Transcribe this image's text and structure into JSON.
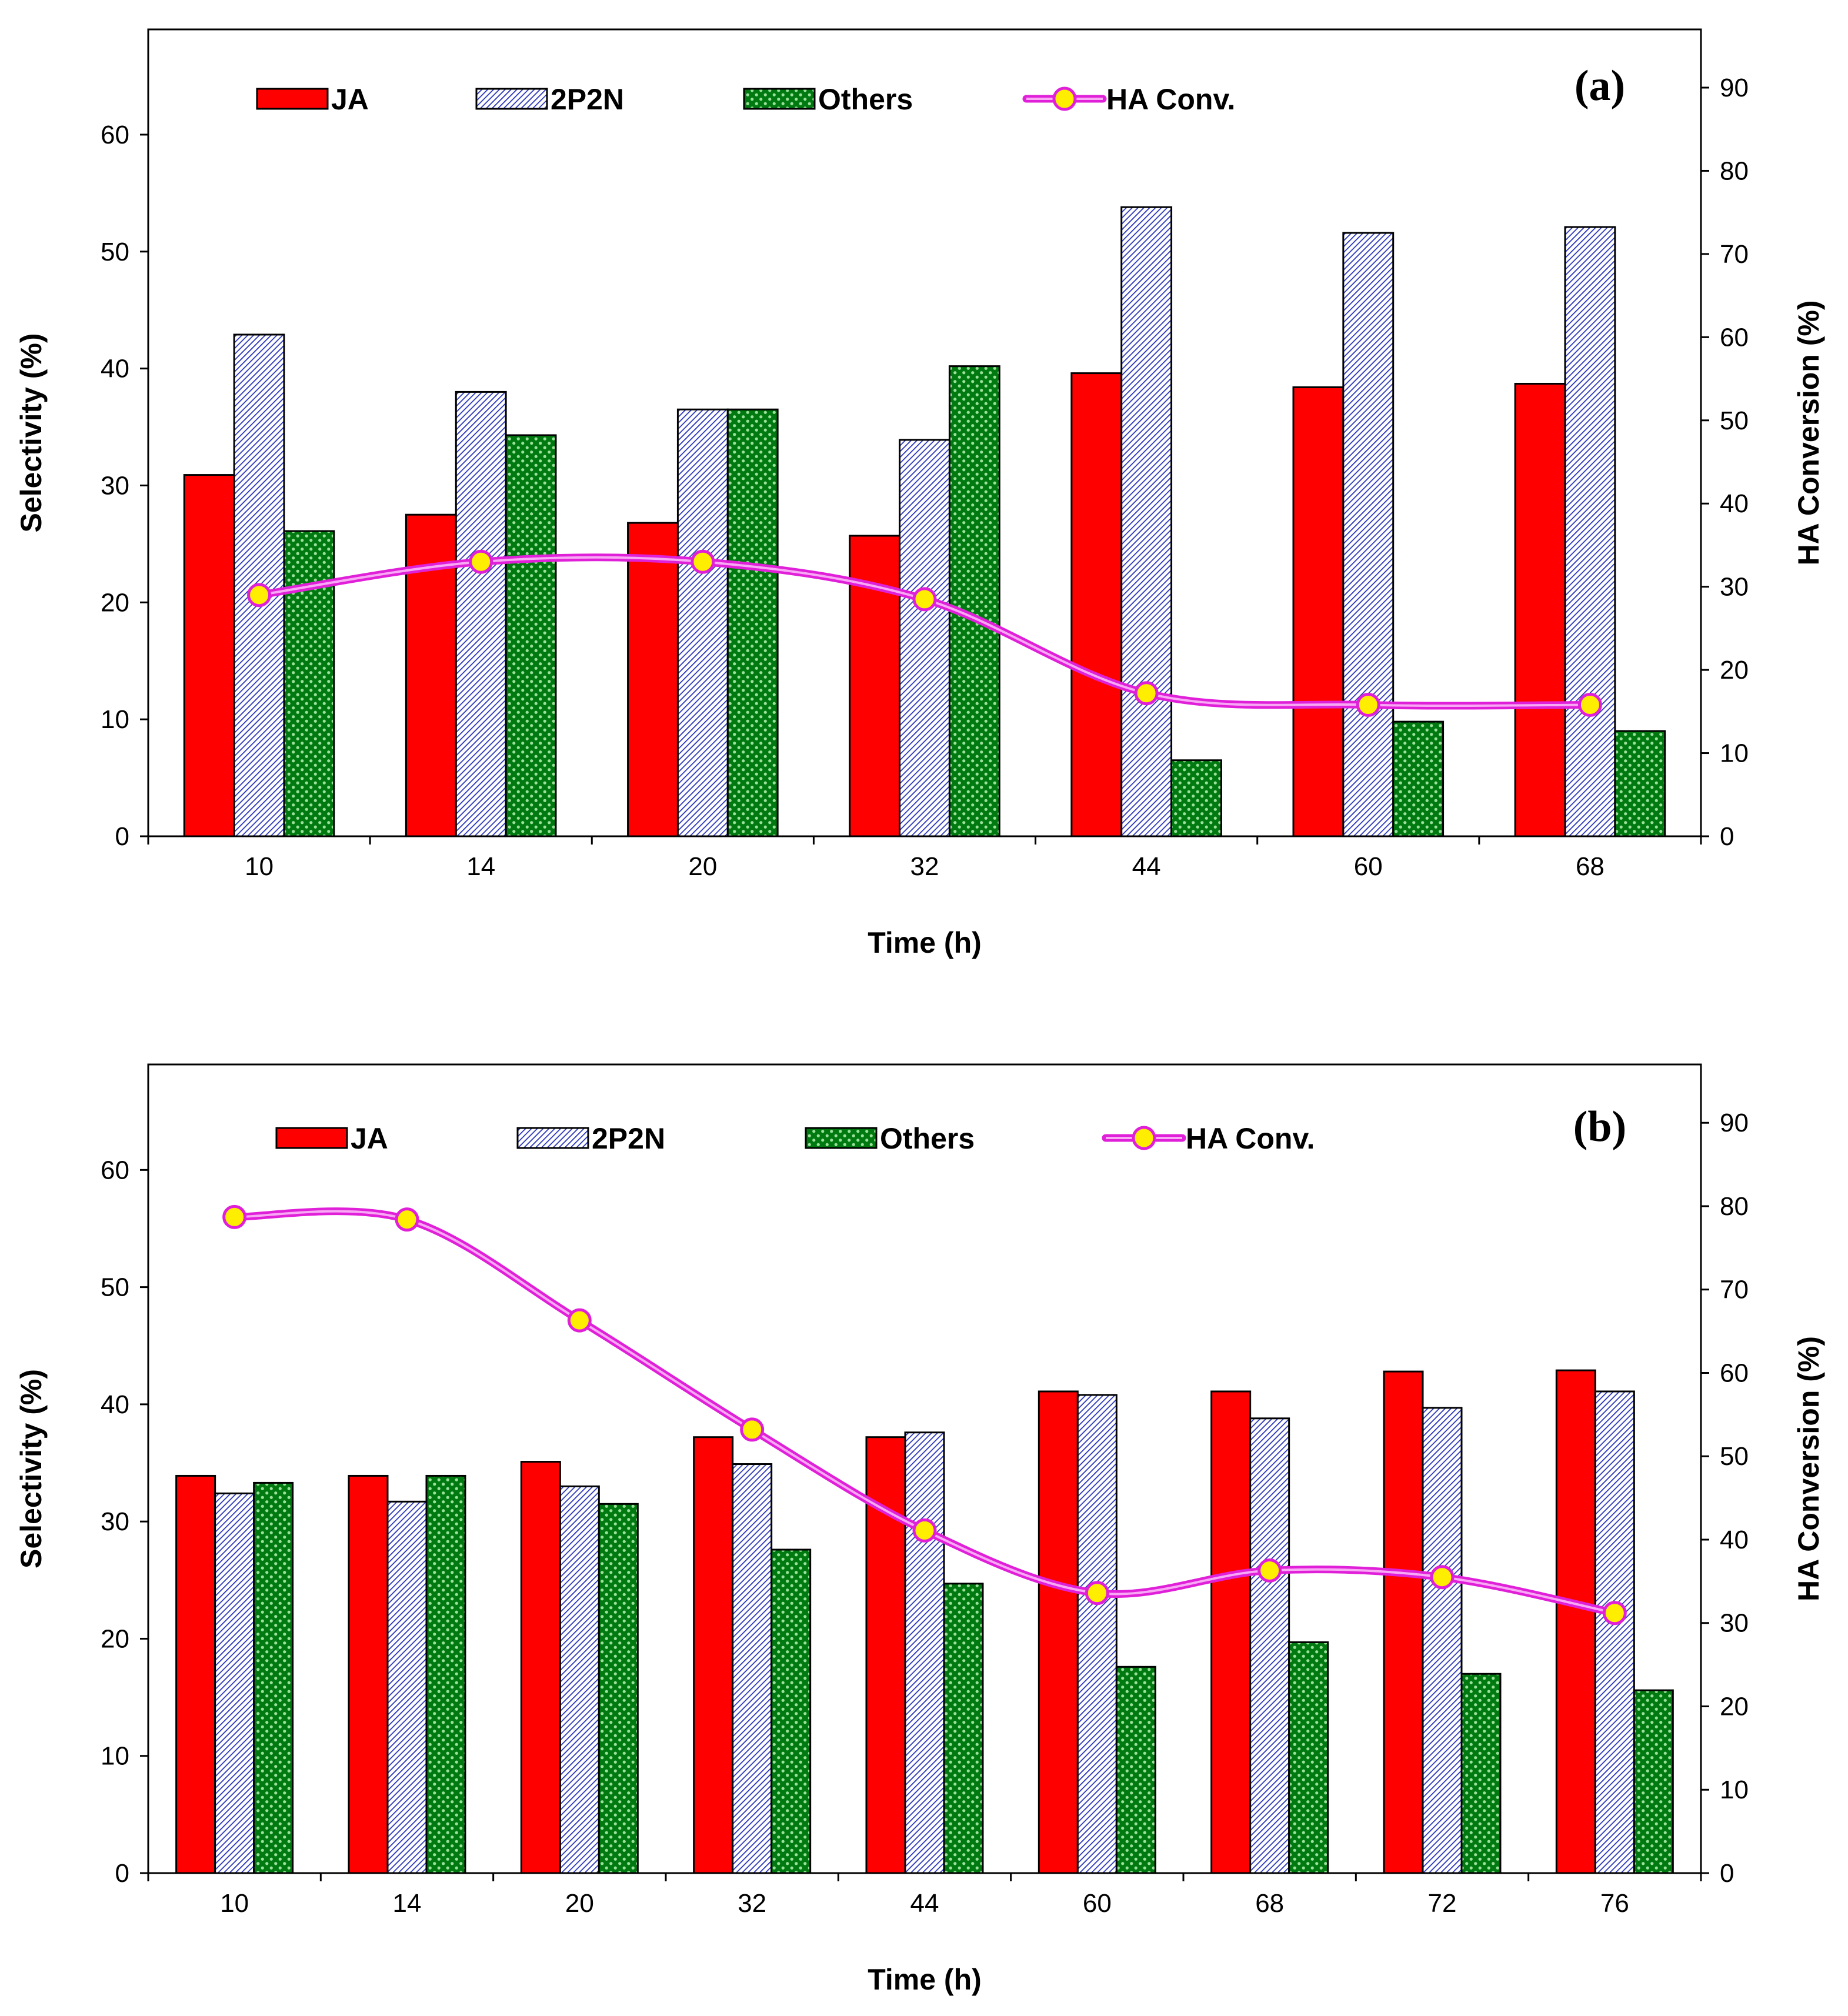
{
  "chart_data": [
    {
      "type": "bar",
      "panel_label": "(a)",
      "categories": [
        "10",
        "14",
        "20",
        "32",
        "44",
        "60",
        "68"
      ],
      "series": [
        {
          "name": "JA",
          "type": "bar",
          "axis": "left",
          "values": [
            30.9,
            27.5,
            26.8,
            25.7,
            39.6,
            38.4,
            38.7
          ]
        },
        {
          "name": "2P2N",
          "type": "bar",
          "axis": "left",
          "values": [
            42.9,
            38.0,
            36.5,
            33.9,
            53.8,
            51.6,
            52.1
          ]
        },
        {
          "name": "Others",
          "type": "bar",
          "axis": "left",
          "values": [
            26.1,
            34.3,
            36.5,
            40.2,
            6.5,
            9.8,
            9.0
          ]
        },
        {
          "name": "HA Conv.",
          "type": "line",
          "axis": "right",
          "smooth": true,
          "values": [
            29.0,
            33.0,
            33.0,
            28.5,
            17.2,
            15.8,
            15.8
          ]
        }
      ],
      "xlabel": "Time (h)",
      "ylabel": "Selectivity (%)",
      "y2label": "HA Conversion (%)",
      "ylim": [
        0,
        69
      ],
      "yticks": [
        0,
        10,
        20,
        30,
        40,
        50,
        60
      ],
      "y2lim": [
        0,
        97
      ],
      "y2ticks": [
        0,
        10,
        20,
        30,
        40,
        50,
        60,
        70,
        80,
        90
      ],
      "legend_position": "top"
    },
    {
      "type": "bar",
      "panel_label": "(b)",
      "categories": [
        "10",
        "14",
        "20",
        "32",
        "44",
        "60",
        "68",
        "72",
        "76"
      ],
      "series": [
        {
          "name": "JA",
          "type": "bar",
          "axis": "left",
          "values": [
            33.9,
            33.9,
            35.1,
            37.2,
            37.2,
            41.1,
            41.1,
            42.8,
            42.9
          ]
        },
        {
          "name": "2P2N",
          "type": "bar",
          "axis": "left",
          "values": [
            32.4,
            31.7,
            33.0,
            34.9,
            37.6,
            40.8,
            38.8,
            39.7,
            41.1
          ]
        },
        {
          "name": "Others",
          "type": "bar",
          "axis": "left",
          "values": [
            33.3,
            33.9,
            31.5,
            27.6,
            24.7,
            17.6,
            19.7,
            17.0,
            15.6
          ]
        },
        {
          "name": "HA Conv.",
          "type": "line",
          "axis": "right",
          "smooth": true,
          "values": [
            78.7,
            78.4,
            66.3,
            53.2,
            41.1,
            33.6,
            36.3,
            35.5,
            31.2
          ]
        }
      ],
      "xlabel": "Time (h)",
      "ylabel": "Selectivity (%)",
      "y2label": "HA Conversion (%)",
      "ylim": [
        0,
        69
      ],
      "yticks": [
        0,
        10,
        20,
        30,
        40,
        50,
        60
      ],
      "y2lim": [
        0,
        97
      ],
      "y2ticks": [
        0,
        10,
        20,
        30,
        40,
        50,
        60,
        70,
        80,
        90
      ],
      "legend_position": "top"
    }
  ],
  "colors": {
    "ja": "#ff0000",
    "p2n_stripe": "#2a35b8",
    "p2n_bg": "#ffffff",
    "others_bg": "#007a10",
    "others_dot": "#9be09b",
    "line": "#e020d8",
    "line_inner": "#f8a8f4",
    "marker_fill": "#ffee00",
    "marker_stroke": "#e020d8"
  }
}
